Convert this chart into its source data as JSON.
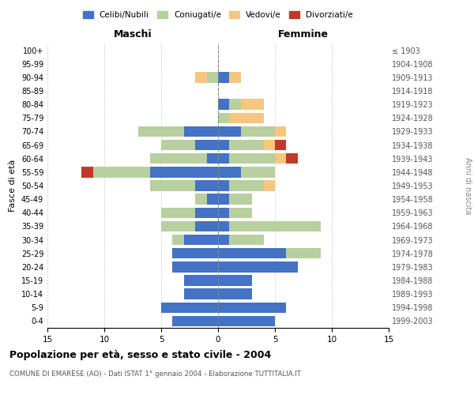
{
  "age_groups": [
    "0-4",
    "5-9",
    "10-14",
    "15-19",
    "20-24",
    "25-29",
    "30-34",
    "35-39",
    "40-44",
    "45-49",
    "50-54",
    "55-59",
    "60-64",
    "65-69",
    "70-74",
    "75-79",
    "80-84",
    "85-89",
    "90-94",
    "95-99",
    "100+"
  ],
  "birth_years": [
    "1999-2003",
    "1994-1998",
    "1989-1993",
    "1984-1988",
    "1979-1983",
    "1974-1978",
    "1969-1973",
    "1964-1968",
    "1959-1963",
    "1954-1958",
    "1949-1953",
    "1944-1948",
    "1939-1943",
    "1934-1938",
    "1929-1933",
    "1924-1928",
    "1919-1923",
    "1914-1918",
    "1909-1913",
    "1904-1908",
    "≤ 1903"
  ],
  "maschi": {
    "celibi": [
      4,
      5,
      3,
      3,
      4,
      4,
      3,
      2,
      2,
      1,
      2,
      6,
      1,
      2,
      3,
      0,
      0,
      0,
      0,
      0,
      0
    ],
    "coniugati": [
      0,
      0,
      0,
      0,
      0,
      0,
      1,
      3,
      3,
      1,
      4,
      5,
      5,
      3,
      4,
      0,
      0,
      0,
      1,
      0,
      0
    ],
    "vedovi": [
      0,
      0,
      0,
      0,
      0,
      0,
      0,
      0,
      0,
      0,
      0,
      0,
      0,
      0,
      0,
      0,
      0,
      0,
      1,
      0,
      0
    ],
    "divorziati": [
      0,
      0,
      0,
      0,
      0,
      0,
      0,
      0,
      0,
      0,
      0,
      1,
      0,
      0,
      0,
      0,
      0,
      0,
      0,
      0,
      0
    ]
  },
  "femmine": {
    "nubili": [
      5,
      6,
      3,
      3,
      7,
      6,
      1,
      1,
      1,
      1,
      1,
      2,
      1,
      1,
      2,
      0,
      1,
      0,
      1,
      0,
      0
    ],
    "coniugate": [
      0,
      0,
      0,
      0,
      0,
      3,
      3,
      8,
      2,
      2,
      3,
      3,
      4,
      3,
      3,
      1,
      1,
      0,
      0,
      0,
      0
    ],
    "vedove": [
      0,
      0,
      0,
      0,
      0,
      0,
      0,
      0,
      0,
      0,
      1,
      0,
      1,
      1,
      1,
      3,
      2,
      0,
      1,
      0,
      0
    ],
    "divorziate": [
      0,
      0,
      0,
      0,
      0,
      0,
      0,
      0,
      0,
      0,
      0,
      0,
      1,
      1,
      0,
      0,
      0,
      0,
      0,
      0,
      0
    ]
  },
  "colors": {
    "celibi": "#4472c4",
    "coniugati": "#b8cfa0",
    "vedovi": "#f5c77e",
    "divorziati": "#c0392b"
  },
  "xlim": [
    -15,
    15
  ],
  "title": "Popolazione per età, sesso e stato civile - 2004",
  "subtitle": "COMUNE DI EMARÈSE (AO) - Dati ISTAT 1° gennaio 2004 - Elaborazione TUTTITALIA.IT",
  "ylabel": "Fasce di età",
  "ylabel_right": "Anni di nascita",
  "xlabel_left": "Maschi",
  "xlabel_right": "Femmine",
  "legend_labels": [
    "Celibi/Nubili",
    "Coniugati/e",
    "Vedovi/e",
    "Divorziati/e"
  ]
}
